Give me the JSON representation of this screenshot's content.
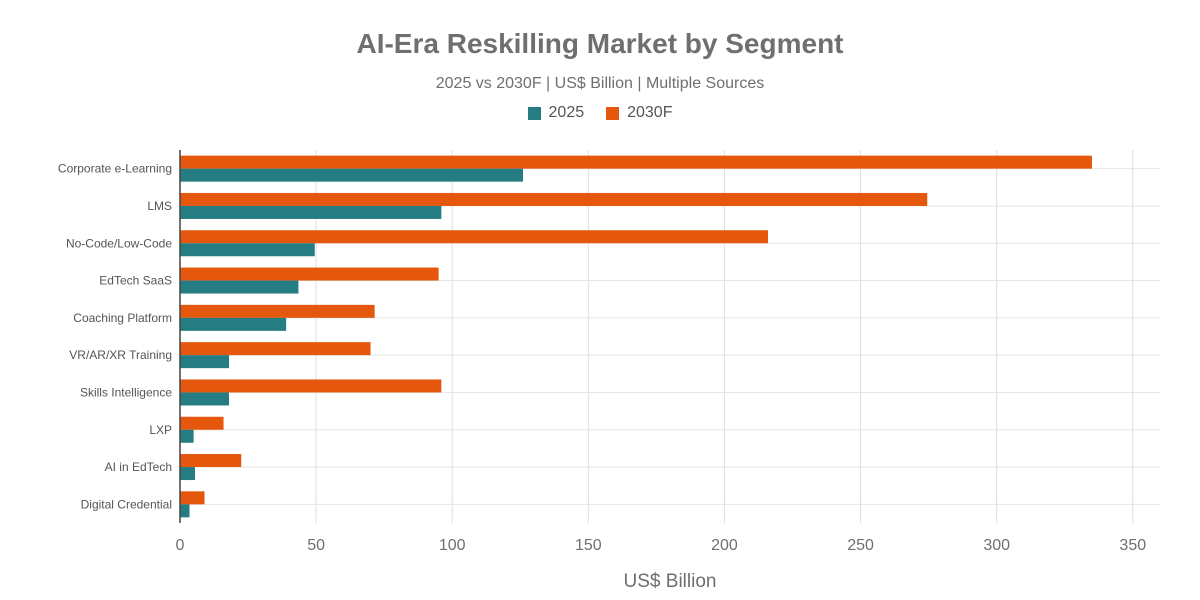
{
  "chart_data": {
    "type": "bar",
    "orientation": "horizontal",
    "title": "AI-Era Reskilling Market by Segment",
    "subtitle": "2025 vs 2030F | US$ Billion | Multiple Sources",
    "xlabel": "US$ Billion",
    "ylabel": "",
    "xlim": [
      0,
      360
    ],
    "xticks": [
      0,
      50,
      100,
      150,
      200,
      250,
      300,
      350
    ],
    "categories": [
      "Corporate e-Learning",
      "LMS",
      "No-Code/Low-Code",
      "EdTech SaaS",
      "Coaching Platform",
      "VR/AR/XR Training",
      "Skills Intelligence",
      "LXP",
      "AI in EdTech",
      "Digital Credential"
    ],
    "series": [
      {
        "name": "2025",
        "color": "#267c83",
        "values": [
          126,
          96,
          49.5,
          43.5,
          39,
          18,
          18,
          5,
          5.5,
          3.5
        ]
      },
      {
        "name": "2030F",
        "color": "#e4570d",
        "values": [
          335,
          274.5,
          216,
          95,
          71.5,
          70,
          96,
          16,
          22.5,
          9
        ]
      }
    ],
    "legend_position": "top-center",
    "grid": true
  }
}
